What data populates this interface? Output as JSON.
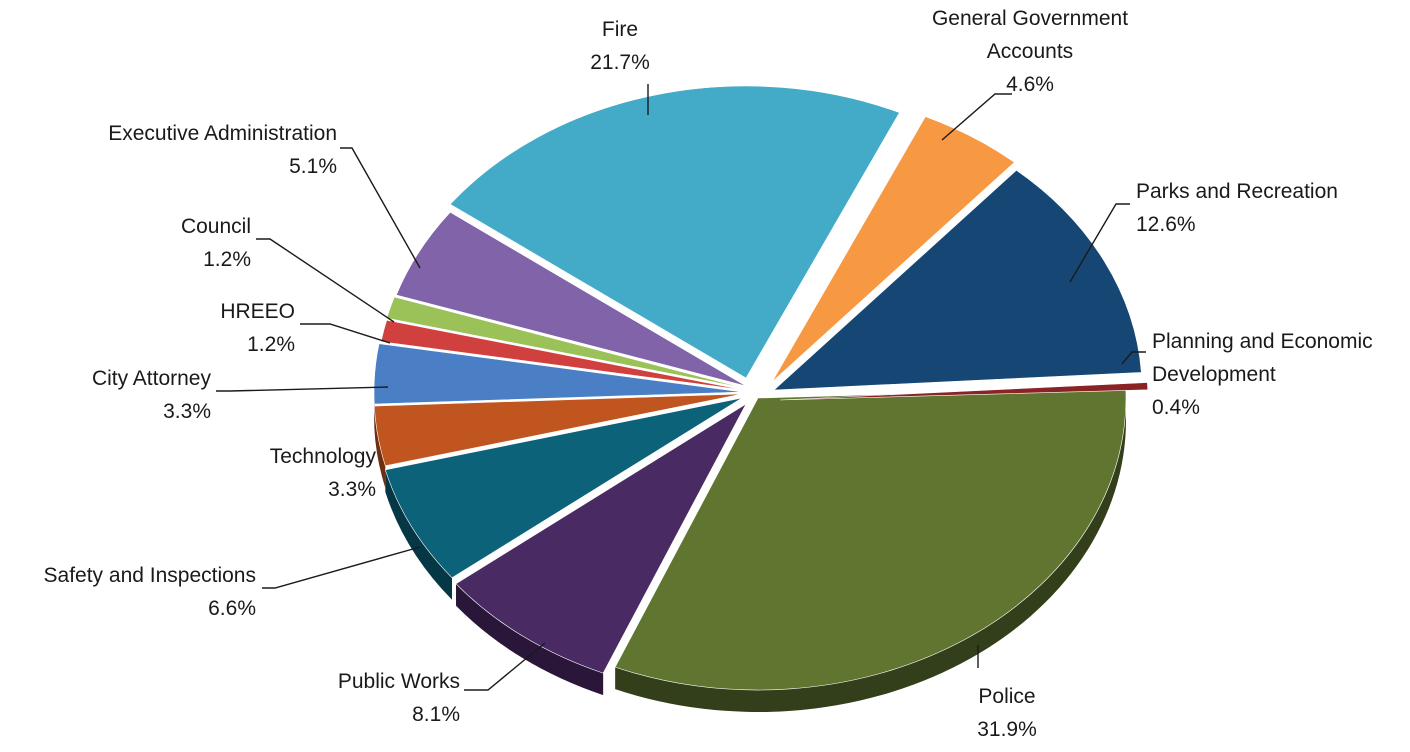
{
  "chart_data": {
    "type": "pie",
    "title": "",
    "style": "3d-exploded",
    "slices": [
      {
        "name": "Police",
        "label_lines": [
          "Police"
        ],
        "value": 31.9,
        "pct_label": "31.9%",
        "color": "#5f7530",
        "side": "#333f1a"
      },
      {
        "name": "Public Works",
        "label_lines": [
          "Public Works"
        ],
        "value": 8.1,
        "pct_label": "8.1%",
        "color": "#4a2a62",
        "side": "#2a1638"
      },
      {
        "name": "Safety and Inspections",
        "label_lines": [
          "Safety and Inspections"
        ],
        "value": 6.6,
        "pct_label": "6.6%",
        "color": "#0c6278",
        "side": "#063744"
      },
      {
        "name": "Technology",
        "label_lines": [
          "Technology"
        ],
        "value": 3.3,
        "pct_label": "3.3%",
        "color": "#c0551f",
        "side": "#6e2e10"
      },
      {
        "name": "City Attorney",
        "label_lines": [
          "City Attorney"
        ],
        "value": 3.3,
        "pct_label": "3.3%",
        "color": "#4a7fc6",
        "side": "#284878"
      },
      {
        "name": "HREEO",
        "label_lines": [
          "HREEO"
        ],
        "value": 1.2,
        "pct_label": "1.2%",
        "color": "#d0403e",
        "side": "#7a2222"
      },
      {
        "name": "Council",
        "label_lines": [
          "Council"
        ],
        "value": 1.2,
        "pct_label": "1.2%",
        "color": "#9bc258",
        "side": "#5a7330"
      },
      {
        "name": "Executive Administration",
        "label_lines": [
          "Executive Administration"
        ],
        "value": 5.1,
        "pct_label": "5.1%",
        "color": "#8063a8",
        "side": "#46345e"
      },
      {
        "name": "Fire",
        "label_lines": [
          "Fire"
        ],
        "value": 21.7,
        "pct_label": "21.7%",
        "color": "#43aac7",
        "side": "#22667a"
      },
      {
        "name": "General Government Accounts",
        "label_lines": [
          "General Government",
          "Accounts"
        ],
        "value": 4.6,
        "pct_label": "4.6%",
        "color": "#f79843",
        "side": "#a8601f"
      },
      {
        "name": "Parks and Recreation",
        "label_lines": [
          "Parks and Recreation"
        ],
        "value": 12.6,
        "pct_label": "12.6%",
        "color": "#164674",
        "side": "#0b2640"
      },
      {
        "name": "Planning and Economic Development",
        "label_lines": [
          "Planning and Economic",
          "Development"
        ],
        "value": 0.4,
        "pct_label": "0.4%",
        "color": "#8a2424",
        "side": "#4a0f0f"
      }
    ]
  }
}
